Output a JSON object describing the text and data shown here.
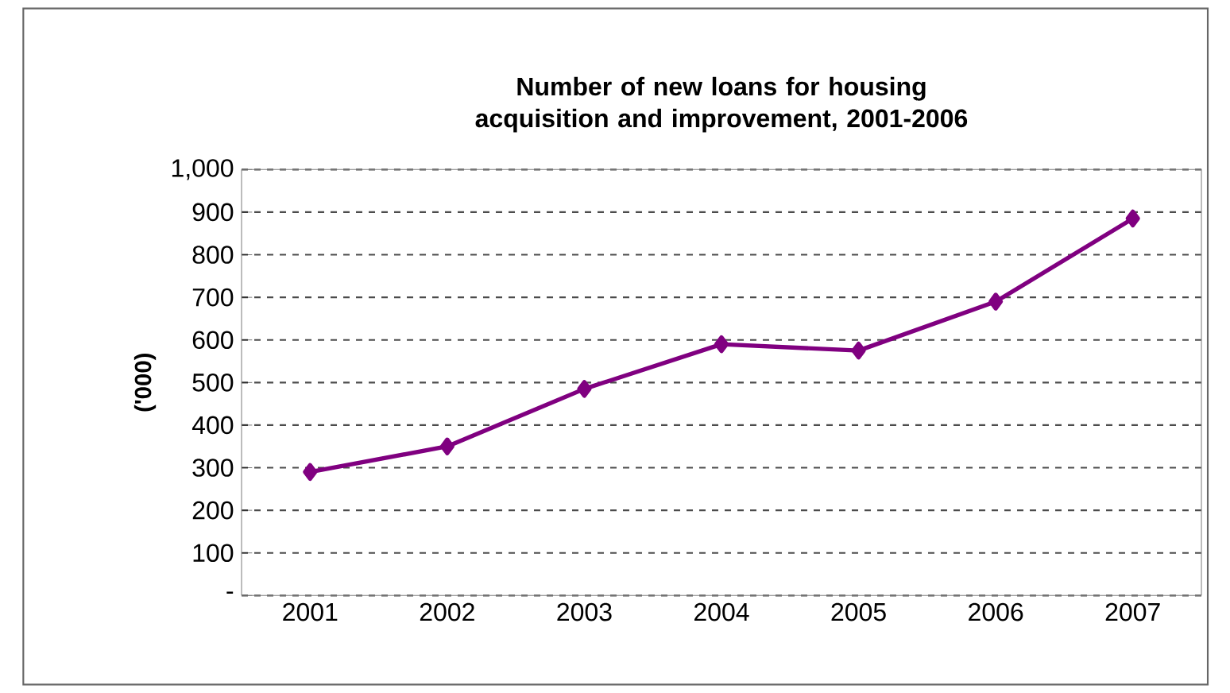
{
  "chart_data": {
    "type": "line",
    "title": "Number of new loans for housing acquisition and improvement, 2001-2006",
    "ylabel": "('000)",
    "categories": [
      "2001",
      "2002",
      "2003",
      "2004",
      "2005",
      "2006",
      "2007"
    ],
    "series": [
      {
        "color": "#800080",
        "values": [
          290,
          350,
          485,
          590,
          575,
          690,
          885
        ]
      }
    ],
    "ylim": [
      0,
      1000
    ],
    "yticks": [
      {
        "value": 0,
        "label": "-"
      },
      100,
      200,
      300,
      400,
      500,
      600,
      700,
      800,
      900,
      {
        "value": 1000,
        "label": "1,000"
      }
    ],
    "grid": "y",
    "marker": "diamond",
    "line_style": "solid",
    "legend": false
  }
}
